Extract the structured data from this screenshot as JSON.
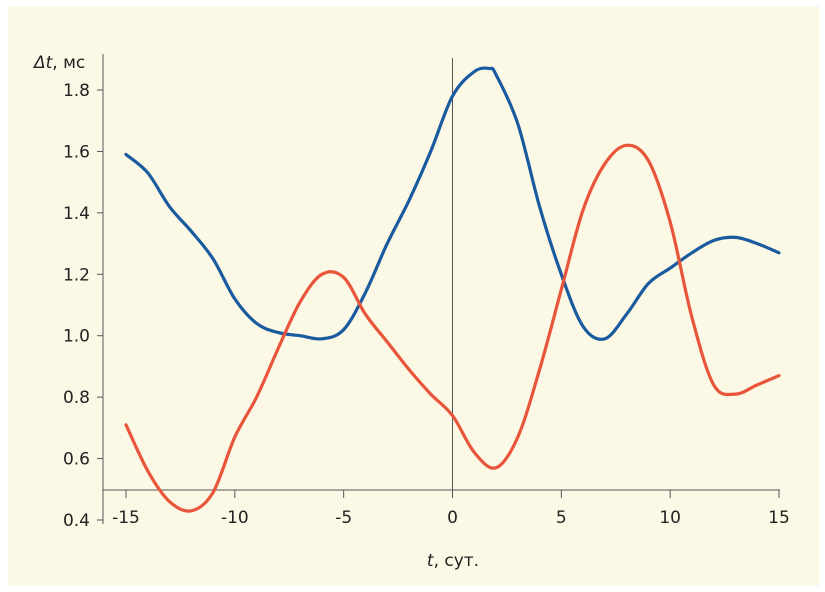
{
  "chart_data": {
    "type": "line",
    "title": "",
    "xlabel_var": "t",
    "xlabel_unit": ", сут.",
    "ylabel_var": "Δt",
    "ylabel_unit": ", мс",
    "xlim": [
      -15,
      15
    ],
    "ylim": [
      0.4,
      1.9
    ],
    "x_ticks": [
      -15,
      -10,
      -5,
      0,
      5,
      10,
      15
    ],
    "x_tick_labels": [
      "-15",
      "-10",
      "-5",
      "0",
      "5",
      "10",
      "15"
    ],
    "y_ticks": [
      0.4,
      0.6,
      0.8,
      1.0,
      1.2,
      1.4,
      1.6,
      1.8
    ],
    "y_tick_labels": [
      "0.4",
      "0.6",
      "0.8",
      "1.0",
      "1.2",
      "1.4",
      "1.6",
      "1.8"
    ],
    "grid": false,
    "vertical_reference_line_x": 0,
    "series": [
      {
        "color": "#1a5a9e",
        "points": [
          [
            -15,
            1.59
          ],
          [
            -14,
            1.53
          ],
          [
            -13,
            1.42
          ],
          [
            -12,
            1.34
          ],
          [
            -11,
            1.25
          ],
          [
            -10,
            1.12
          ],
          [
            -9,
            1.04
          ],
          [
            -8,
            1.01
          ],
          [
            -7,
            1.0
          ],
          [
            -6,
            0.99
          ],
          [
            -5,
            1.02
          ],
          [
            -4,
            1.14
          ],
          [
            -3,
            1.3
          ],
          [
            -2,
            1.44
          ],
          [
            -1,
            1.6
          ],
          [
            0,
            1.78
          ],
          [
            1,
            1.86
          ],
          [
            1.7,
            1.87
          ],
          [
            2,
            1.85
          ],
          [
            3,
            1.69
          ],
          [
            4,
            1.42
          ],
          [
            5,
            1.2
          ],
          [
            6,
            1.03
          ],
          [
            7,
            0.99
          ],
          [
            8,
            1.07
          ],
          [
            9,
            1.17
          ],
          [
            10,
            1.22
          ],
          [
            11,
            1.27
          ],
          [
            12,
            1.31
          ],
          [
            13,
            1.32
          ],
          [
            14,
            1.3
          ],
          [
            15,
            1.27
          ]
        ]
      },
      {
        "color": "#e8553a",
        "points": [
          [
            -15,
            0.71
          ],
          [
            -14,
            0.56
          ],
          [
            -13,
            0.46
          ],
          [
            -12,
            0.43
          ],
          [
            -11,
            0.49
          ],
          [
            -10,
            0.67
          ],
          [
            -9,
            0.8
          ],
          [
            -8,
            0.96
          ],
          [
            -7,
            1.11
          ],
          [
            -6,
            1.2
          ],
          [
            -5,
            1.19
          ],
          [
            -4,
            1.07
          ],
          [
            -3,
            0.98
          ],
          [
            -2,
            0.89
          ],
          [
            -1,
            0.81
          ],
          [
            0,
            0.74
          ],
          [
            1,
            0.62
          ],
          [
            2,
            0.57
          ],
          [
            3,
            0.67
          ],
          [
            4,
            0.89
          ],
          [
            5,
            1.15
          ],
          [
            6,
            1.41
          ],
          [
            7,
            1.56
          ],
          [
            8,
            1.62
          ],
          [
            9,
            1.57
          ],
          [
            10,
            1.37
          ],
          [
            11,
            1.06
          ],
          [
            12,
            0.84
          ],
          [
            13,
            0.81
          ],
          [
            14,
            0.84
          ],
          [
            15,
            0.87
          ]
        ]
      }
    ]
  }
}
